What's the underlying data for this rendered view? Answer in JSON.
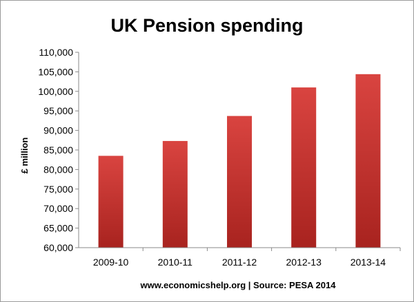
{
  "chart_data": {
    "type": "bar",
    "title": "UK Pension spending",
    "xlabel": "www.economicshelp.org | Source: PESA 2014",
    "ylabel": "£ million",
    "categories": [
      "2009-10",
      "2010-11",
      "2011-12",
      "2012-13",
      "2013-14"
    ],
    "values": [
      83500,
      87300,
      93700,
      101000,
      104400
    ],
    "ylim": [
      60000,
      110000
    ],
    "yticks": [
      "60,000",
      "65,000",
      "70,000",
      "75,000",
      "80,000",
      "85,000",
      "90,000",
      "95,000",
      "100,000",
      "105,000",
      "110,000"
    ],
    "grid": false,
    "legend": "none",
    "bar_color": "#c9302c"
  }
}
